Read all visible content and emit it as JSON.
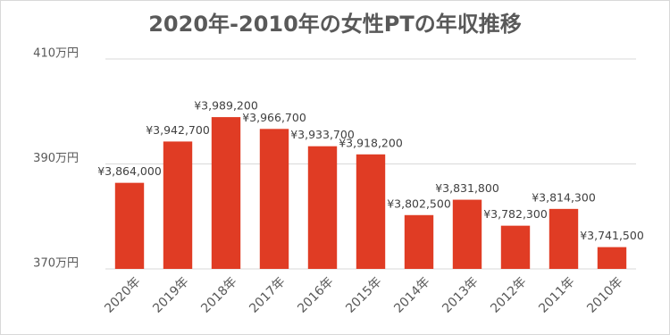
{
  "chart_data": {
    "type": "bar",
    "title": "2020年-2010年の女性PTの年収推移",
    "categories": [
      "2020年",
      "2019年",
      "2018年",
      "2017年",
      "2016年",
      "2015年",
      "2014年",
      "2013年",
      "2012年",
      "2011年",
      "2010年"
    ],
    "values": [
      386.4,
      394.27,
      398.92,
      396.67,
      393.37,
      391.82,
      380.25,
      383.18,
      378.23,
      381.43,
      374.15
    ],
    "value_labels": [
      "¥3,864,000",
      "¥3,942,700",
      "¥3,989,200",
      "¥3,966,700",
      "¥3,933,700",
      "¥3,918,200",
      "¥3,802,500",
      "¥3,831,800",
      "¥3,782,300",
      "¥3,814,300",
      "¥3,741,500"
    ],
    "color": "#e03c24",
    "ylim": [
      370,
      410
    ],
    "yticks": [
      {
        "value": 370,
        "label": "370万円"
      },
      {
        "value": 390,
        "label": "390万円"
      },
      {
        "value": 410,
        "label": "410万円"
      }
    ],
    "grid": true
  }
}
